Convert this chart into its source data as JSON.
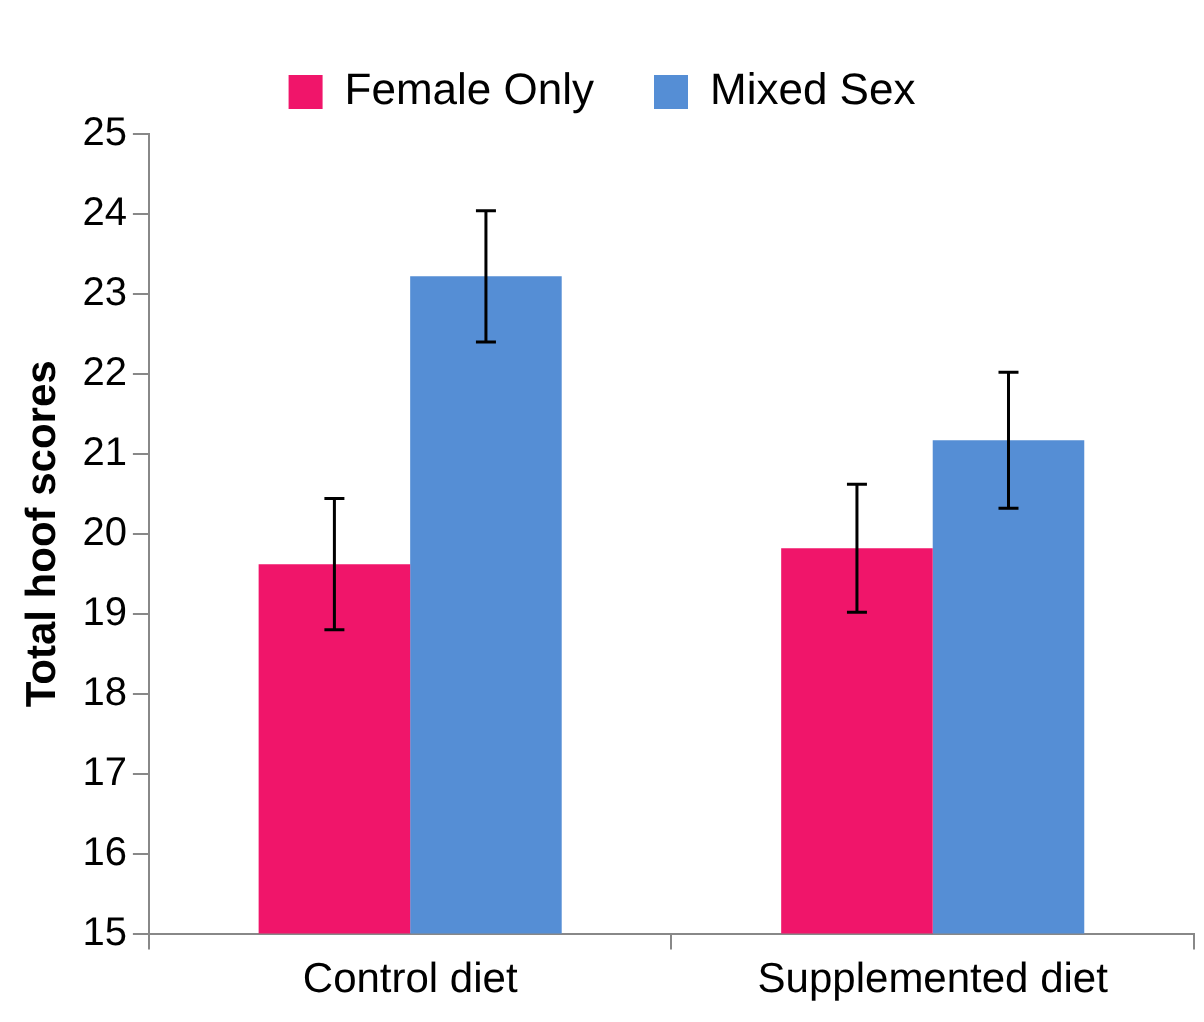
{
  "chart_data": {
    "type": "bar",
    "ylabel": "Total hoof scores",
    "categories": [
      "Control diet",
      "Supplemented diet"
    ],
    "series": [
      {
        "name": "Female Only",
        "color": "#f0156a",
        "values": [
          19.62,
          19.82
        ],
        "errors": [
          0.82,
          0.8
        ]
      },
      {
        "name": "Mixed Sex",
        "color": "#558ed5",
        "values": [
          23.22,
          21.17
        ],
        "errors": [
          0.82,
          0.85
        ]
      }
    ],
    "ylim": [
      15,
      25
    ],
    "yticks": [
      15,
      16,
      17,
      18,
      19,
      20,
      21,
      22,
      23,
      24,
      25
    ],
    "grid": false,
    "legend": "top"
  }
}
